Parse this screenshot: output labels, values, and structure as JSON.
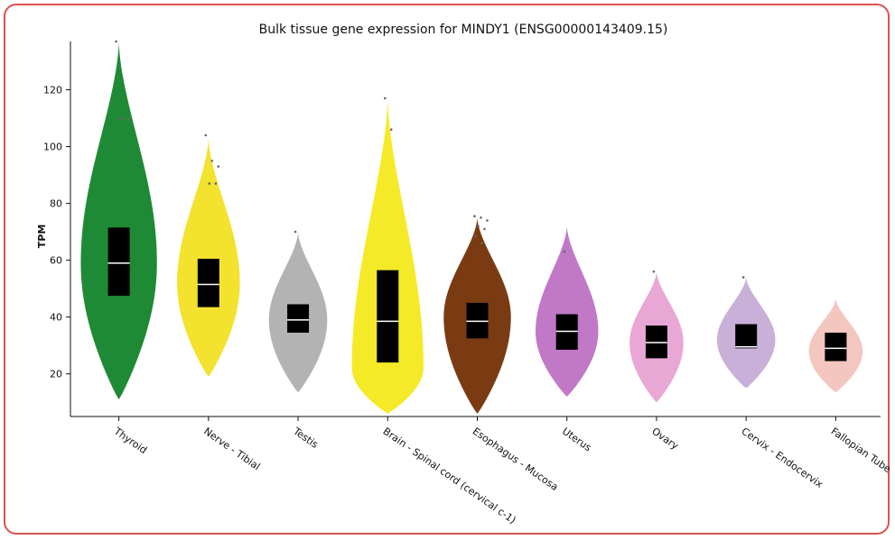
{
  "chart_data": {
    "type": "violin",
    "title": "Bulk tissue gene expression for MINDY1 (ENSG00000143409.15)",
    "ylabel": "TPM",
    "xlabel": "",
    "ylim": [
      5,
      137
    ],
    "yticks": [
      20,
      40,
      60,
      80,
      100,
      120
    ],
    "grid": false,
    "legend": "none",
    "categories": [
      {
        "name": "Thyroid",
        "color": "#1f8a35",
        "min": 11,
        "max": 137,
        "widest": 59,
        "width": 0.85,
        "q1": 47.5,
        "median": 59,
        "q3": 71.5,
        "outliers": [
          137,
          110,
          109.5,
          109.5
        ]
      },
      {
        "name": "Nerve - Tibial",
        "color": "#f3e22e",
        "min": 19,
        "max": 103,
        "widest": 52,
        "width": 0.7,
        "q1": 43.5,
        "median": 51.5,
        "q3": 60.5,
        "outliers": [
          104,
          95,
          93,
          87,
          87
        ]
      },
      {
        "name": "Testis",
        "color": "#b3b3b3",
        "min": 13.5,
        "max": 70,
        "widest": 39,
        "width": 0.65,
        "q1": 34.5,
        "median": 39,
        "q3": 44.5,
        "outliers": [
          70
        ]
      },
      {
        "name": "Brain - Spinal cord (cervical c-1)",
        "color": "#f5ea28",
        "min": 6,
        "max": 117,
        "widest": 22,
        "width": 0.8,
        "q1": 24,
        "median": 38.5,
        "q3": 56.5,
        "outliers": [
          117,
          106
        ]
      },
      {
        "name": "Esophagus - Mucosa",
        "color": "#7a3b12",
        "min": 6,
        "max": 75,
        "widest": 40,
        "width": 0.75,
        "q1": 32.5,
        "median": 38.5,
        "q3": 45,
        "outliers": [
          75.5,
          75,
          74,
          72,
          71,
          68.5,
          66
        ]
      },
      {
        "name": "Uterus",
        "color": "#c178c6",
        "min": 12,
        "max": 72,
        "widest": 35,
        "width": 0.7,
        "q1": 28.5,
        "median": 35,
        "q3": 41,
        "outliers": [
          63
        ]
      },
      {
        "name": "Ovary",
        "color": "#e8a7d5",
        "min": 10,
        "max": 56,
        "widest": 31,
        "width": 0.6,
        "q1": 25.5,
        "median": 31,
        "q3": 37,
        "outliers": [
          56
        ]
      },
      {
        "name": "Cervix - Endocervix",
        "color": "#c9b0d9",
        "min": 15,
        "max": 54,
        "widest": 32,
        "width": 0.65,
        "q1": 29,
        "median": 29.5,
        "q3": 37.5,
        "outliers": [
          54
        ]
      },
      {
        "name": "Fallopian Tube",
        "color": "#f4c6c0",
        "min": 13.5,
        "max": 46.5,
        "widest": 28,
        "width": 0.6,
        "q1": 24.5,
        "median": 29,
        "q3": 34.5,
        "outliers": []
      }
    ]
  }
}
